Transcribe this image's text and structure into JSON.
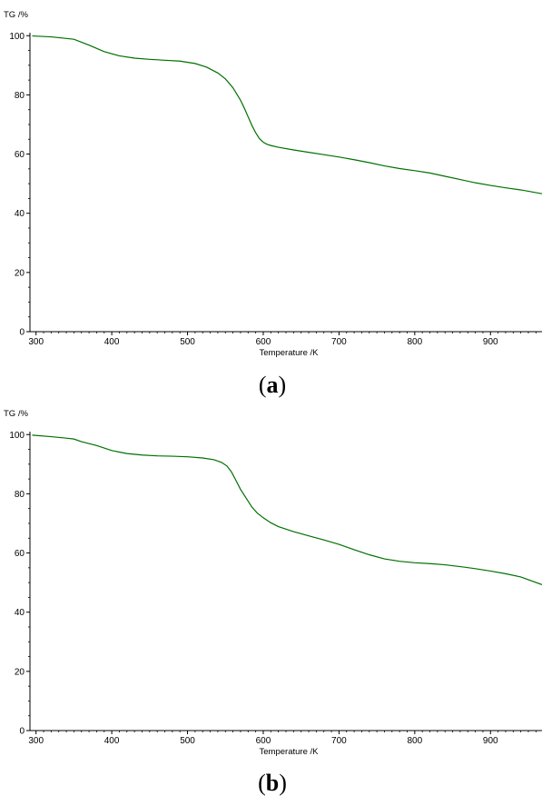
{
  "colors": {
    "curve": "#007000",
    "axis": "#000000"
  },
  "chart_data": [
    {
      "type": "line",
      "panel_label_open": "(",
      "panel_label_letter": "a",
      "panel_label_close": ")",
      "title": "",
      "xlabel": "Temperature /K",
      "ylabel": "TG /%",
      "xlim": [
        292,
        968
      ],
      "ylim": [
        0,
        101
      ],
      "x_ticks": [
        300,
        400,
        500,
        600,
        700,
        800,
        900
      ],
      "y_ticks": [
        0,
        20,
        40,
        60,
        80,
        100
      ],
      "series": [
        {
          "x": [
            295,
            320,
            350,
            370,
            390,
            410,
            430,
            450,
            470,
            490,
            510,
            525,
            540,
            550,
            560,
            570,
            575,
            580,
            585,
            590,
            595,
            600,
            605,
            610,
            620,
            640,
            660,
            680,
            700,
            720,
            740,
            760,
            780,
            800,
            820,
            840,
            860,
            880,
            900,
            920,
            940,
            968
          ],
          "y": [
            99.9,
            99.6,
            98.8,
            96.8,
            94.6,
            93.2,
            92.4,
            92.0,
            91.7,
            91.4,
            90.6,
            89.4,
            87.4,
            85.4,
            82.4,
            78.2,
            75.5,
            72.6,
            69.7,
            67.2,
            65.2,
            64.0,
            63.3,
            62.9,
            62.3,
            61.4,
            60.6,
            59.8,
            59.0,
            58.1,
            57.1,
            56.0,
            55.1,
            54.4,
            53.6,
            52.5,
            51.4,
            50.3,
            49.4,
            48.6,
            47.9,
            46.6
          ]
        }
      ]
    },
    {
      "type": "line",
      "panel_label_open": "(",
      "panel_label_letter": "b",
      "panel_label_close": ")",
      "title": "",
      "xlabel": "Temperature /K",
      "ylabel": "TG /%",
      "xlim": [
        292,
        968
      ],
      "ylim": [
        0,
        101
      ],
      "x_ticks": [
        300,
        400,
        500,
        600,
        700,
        800,
        900
      ],
      "y_ticks": [
        0,
        20,
        40,
        60,
        80,
        100
      ],
      "series": [
        {
          "x": [
            295,
            320,
            340,
            350,
            360,
            380,
            400,
            420,
            440,
            460,
            480,
            500,
            520,
            535,
            545,
            552,
            558,
            564,
            570,
            578,
            585,
            592,
            600,
            610,
            620,
            640,
            660,
            680,
            700,
            720,
            740,
            760,
            780,
            800,
            820,
            840,
            860,
            880,
            900,
            920,
            940,
            968
          ],
          "y": [
            99.8,
            99.3,
            98.8,
            98.5,
            97.6,
            96.3,
            94.6,
            93.6,
            93.1,
            92.8,
            92.7,
            92.5,
            92.1,
            91.5,
            90.6,
            89.4,
            87.4,
            84.5,
            81.5,
            78.3,
            75.5,
            73.5,
            71.9,
            70.2,
            68.9,
            67.2,
            65.8,
            64.4,
            62.9,
            61.1,
            59.4,
            58.0,
            57.2,
            56.7,
            56.4,
            56.0,
            55.4,
            54.7,
            53.9,
            53.0,
            51.9,
            49.3
          ]
        }
      ]
    }
  ]
}
